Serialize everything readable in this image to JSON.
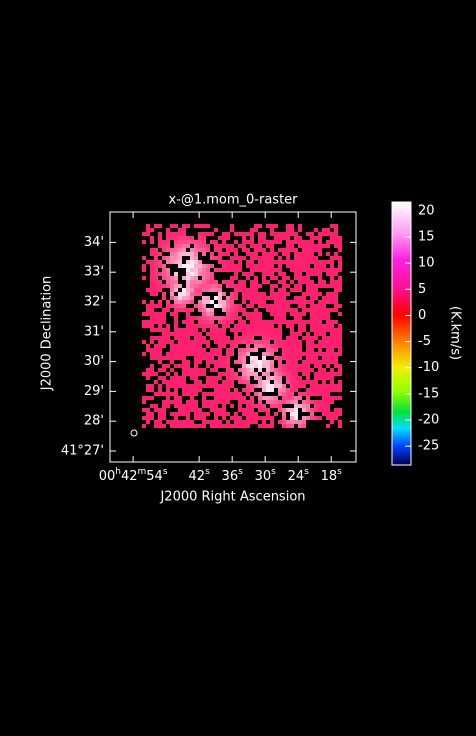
{
  "chart_data": {
    "type": "raster",
    "title": "x-@1.mom_0-raster",
    "x_label": "J2000 Right Ascension",
    "y_label": "J2000 Declination",
    "xlim": [
      58.2,
      13.5
    ],
    "xticks": [
      {
        "value": 54,
        "label": "00h42m54s"
      },
      {
        "value": 42,
        "label": "42s"
      },
      {
        "value": 36,
        "label": "36s"
      },
      {
        "value": 30,
        "label": "30s"
      },
      {
        "value": 24,
        "label": "24s"
      },
      {
        "value": 18,
        "label": "18s"
      }
    ],
    "ylim": [
      26.63,
      35.02
    ],
    "yticks": [
      {
        "value": 27,
        "label": "41°27'"
      },
      {
        "value": 28,
        "label": "28'"
      },
      {
        "value": 29,
        "label": "29'"
      },
      {
        "value": 30,
        "label": "30'"
      },
      {
        "value": 31,
        "label": "31'"
      },
      {
        "value": 32,
        "label": "32'"
      },
      {
        "value": 33,
        "label": "33'"
      },
      {
        "value": 34,
        "label": "34'"
      }
    ],
    "colorbar": {
      "label": "(K.km/s)",
      "lim": [
        -28.6,
        21.7
      ],
      "ticks": [
        20,
        15,
        10,
        5,
        0,
        -5,
        -10,
        -15,
        -20,
        -25
      ]
    }
  }
}
